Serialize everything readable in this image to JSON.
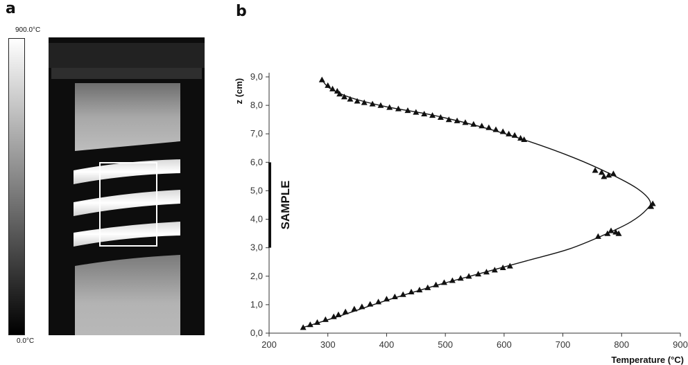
{
  "panel_a": {
    "letter": "a",
    "colorbar": {
      "max_label": "900.0°C",
      "min_label": "0.0°C",
      "max_value": 900.0,
      "min_value": 0.0,
      "unit": "°C"
    }
  },
  "panel_b": {
    "letter": "b"
  },
  "chart_data": {
    "type": "scatter",
    "xlabel": "Temperature (°C)",
    "ylabel": "z (cm)",
    "xlim": [
      200,
      900
    ],
    "ylim": [
      0,
      9
    ],
    "xticks": [
      "200",
      "300",
      "400",
      "500",
      "600",
      "700",
      "800",
      "900"
    ],
    "yticks": [
      "0,0",
      "1,0",
      "2,0",
      "3,0",
      "4,0",
      "5,0",
      "6,0",
      "7,0",
      "8,0",
      "9,0"
    ],
    "annotation": {
      "label": "SAMPLE",
      "z_range": [
        3.0,
        6.0
      ]
    },
    "series": [
      {
        "marker": "triangle",
        "points": [
          [
            258,
            0.2
          ],
          [
            270,
            0.3
          ],
          [
            282,
            0.38
          ],
          [
            296,
            0.48
          ],
          [
            310,
            0.58
          ],
          [
            318,
            0.65
          ],
          [
            330,
            0.75
          ],
          [
            345,
            0.85
          ],
          [
            358,
            0.93
          ],
          [
            372,
            1.02
          ],
          [
            386,
            1.1
          ],
          [
            400,
            1.2
          ],
          [
            414,
            1.28
          ],
          [
            428,
            1.36
          ],
          [
            442,
            1.45
          ],
          [
            456,
            1.52
          ],
          [
            470,
            1.6
          ],
          [
            484,
            1.7
          ],
          [
            498,
            1.78
          ],
          [
            512,
            1.85
          ],
          [
            526,
            1.93
          ],
          [
            540,
            2.0
          ],
          [
            556,
            2.08
          ],
          [
            570,
            2.15
          ],
          [
            584,
            2.22
          ],
          [
            598,
            2.3
          ],
          [
            610,
            2.36
          ],
          [
            760,
            3.4
          ],
          [
            776,
            3.5
          ],
          [
            782,
            3.6
          ],
          [
            790,
            3.55
          ],
          [
            795,
            3.5
          ],
          [
            850,
            4.45
          ],
          [
            853,
            4.55
          ],
          [
            770,
            5.5
          ],
          [
            778,
            5.55
          ],
          [
            786,
            5.6
          ],
          [
            766,
            5.65
          ],
          [
            755,
            5.72
          ],
          [
            634,
            6.8
          ],
          [
            628,
            6.85
          ],
          [
            618,
            6.95
          ],
          [
            608,
            7.0
          ],
          [
            598,
            7.08
          ],
          [
            586,
            7.15
          ],
          [
            574,
            7.22
          ],
          [
            562,
            7.28
          ],
          [
            548,
            7.34
          ],
          [
            534,
            7.4
          ],
          [
            520,
            7.46
          ],
          [
            506,
            7.5
          ],
          [
            492,
            7.58
          ],
          [
            478,
            7.65
          ],
          [
            464,
            7.7
          ],
          [
            450,
            7.76
          ],
          [
            436,
            7.82
          ],
          [
            420,
            7.88
          ],
          [
            405,
            7.93
          ],
          [
            390,
            8.0
          ],
          [
            376,
            8.05
          ],
          [
            362,
            8.1
          ],
          [
            350,
            8.15
          ],
          [
            338,
            8.22
          ],
          [
            328,
            8.3
          ],
          [
            320,
            8.4
          ],
          [
            316,
            8.5
          ],
          [
            308,
            8.58
          ],
          [
            300,
            8.7
          ],
          [
            290,
            8.9
          ]
        ]
      }
    ],
    "fit_curve": [
      [
        258,
        0.2
      ],
      [
        320,
        0.6
      ],
      [
        400,
        1.15
      ],
      [
        480,
        1.65
      ],
      [
        560,
        2.1
      ],
      [
        640,
        2.55
      ],
      [
        710,
        2.95
      ],
      [
        770,
        3.45
      ],
      [
        815,
        3.9
      ],
      [
        843,
        4.35
      ],
      [
        848,
        4.65
      ],
      [
        825,
        5.1
      ],
      [
        780,
        5.6
      ],
      [
        720,
        6.15
      ],
      [
        640,
        6.75
      ],
      [
        560,
        7.25
      ],
      [
        480,
        7.65
      ],
      [
        400,
        7.95
      ],
      [
        350,
        8.2
      ],
      [
        320,
        8.42
      ],
      [
        300,
        8.65
      ],
      [
        290,
        8.9
      ]
    ]
  }
}
